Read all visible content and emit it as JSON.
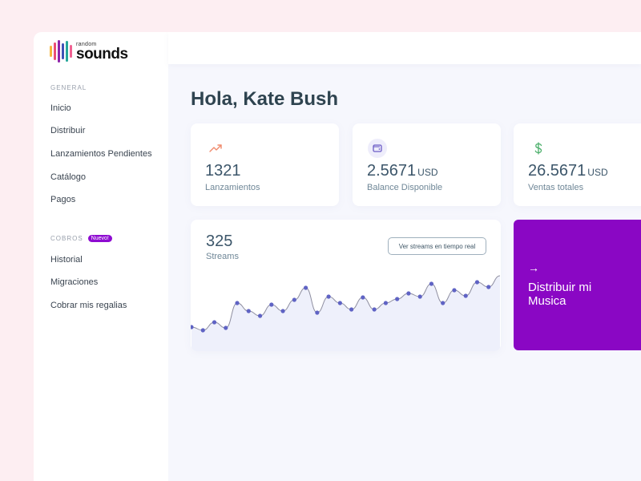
{
  "brand": {
    "small": "random",
    "big": "sounds",
    "bar_colors": [
      "#f6b73c",
      "#e94e77",
      "#8e24aa",
      "#3f51b5",
      "#26a69a",
      "#f06292"
    ]
  },
  "sidebar": {
    "general_label": "GENERAL",
    "general_items": [
      "Inicio",
      "Distribuir",
      "Lanzamientos Pendientes",
      "Catálogo",
      "Pagos"
    ],
    "cobros_label": "COBROS",
    "cobros_badge": "Nuevo!",
    "cobros_items": [
      "Historial",
      "Migraciones",
      "Cobrar mis regalias"
    ]
  },
  "greeting": "Hola, Kate Bush",
  "stats": [
    {
      "icon": "trending-up-icon",
      "value": "1321",
      "unit": "",
      "label": "Lanzamientos",
      "color": "#f08a6c"
    },
    {
      "icon": "wallet-icon",
      "value": "2.5671",
      "unit": "USD",
      "label": "Balance Disponible",
      "color": "#6b5cc6"
    },
    {
      "icon": "dollar-icon",
      "value": "26.5671",
      "unit": "USD",
      "label": "Ventas totales",
      "color": "#4caf6b"
    }
  ],
  "streams": {
    "value": "325",
    "label": "Streams",
    "button_label": "Ver streams en tiempo real"
  },
  "chart_data": {
    "type": "line",
    "points": [
      26,
      22,
      32,
      25,
      56,
      46,
      40,
      54,
      46,
      60,
      75,
      44,
      64,
      56,
      48,
      63,
      48,
      56,
      61,
      68,
      64,
      80,
      56,
      72,
      65,
      82,
      76,
      90
    ],
    "ymax": 100,
    "line_color": "#8e8ea0",
    "dot_color": "#5f63c4",
    "fill_color": "#eef0fb"
  },
  "cta": {
    "arrow": "→",
    "text": "Distribuir mi Musica"
  }
}
